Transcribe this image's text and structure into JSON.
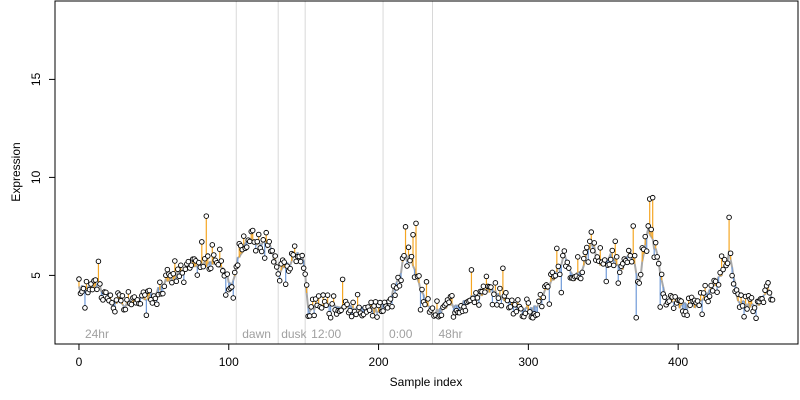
{
  "chart_data": {
    "type": "line",
    "title": "",
    "xlabel": "Sample index",
    "ylabel": "Expression",
    "xlim": [
      -16,
      480
    ],
    "ylim": [
      1.5,
      19
    ],
    "x_ticks": [
      0,
      100,
      200,
      300,
      400
    ],
    "y_ticks": [
      5,
      10,
      15
    ],
    "grid": false,
    "legend": "none",
    "colors": {
      "fitted_line": "#a8a8a8",
      "residual_above": "#f5a623",
      "residual_below": "#6f9ad8",
      "divider": "#d8d8d8",
      "region_label": "#a0a0a0",
      "point_fill": "#ffffff",
      "point_stroke": "#000000"
    },
    "dividers": [
      105,
      133,
      151,
      203,
      236
    ],
    "region_labels": [
      {
        "text": "24hr",
        "x": 2
      },
      {
        "text": "dawn",
        "x": 107
      },
      {
        "text": "dusk",
        "x": 133
      },
      {
        "text": "12:00",
        "x": 153
      },
      {
        "text": "0:00",
        "x": 205
      },
      {
        "text": "48hr",
        "x": 238
      }
    ],
    "anchors": {
      "fitted": [
        [
          0,
          4.3
        ],
        [
          12,
          4.6
        ],
        [
          20,
          3.8
        ],
        [
          30,
          3.5
        ],
        [
          40,
          3.7
        ],
        [
          50,
          4.1
        ],
        [
          60,
          4.8
        ],
        [
          70,
          5.3
        ],
        [
          80,
          5.5
        ],
        [
          90,
          5.7
        ],
        [
          95,
          5.5
        ],
        [
          102,
          4.5
        ],
        [
          106,
          5.8
        ],
        [
          112,
          6.8
        ],
        [
          120,
          6.7
        ],
        [
          128,
          6.5
        ],
        [
          133,
          5.2
        ],
        [
          140,
          5.6
        ],
        [
          146,
          6.2
        ],
        [
          150,
          5.8
        ],
        [
          153,
          3.3
        ],
        [
          160,
          3.4
        ],
        [
          170,
          3.6
        ],
        [
          180,
          3.4
        ],
        [
          190,
          3.3
        ],
        [
          200,
          3.2
        ],
        [
          205,
          3.6
        ],
        [
          212,
          4.5
        ],
        [
          217,
          5.8
        ],
        [
          222,
          5.9
        ],
        [
          226,
          4.8
        ],
        [
          232,
          3.4
        ],
        [
          238,
          3.1
        ],
        [
          245,
          3.4
        ],
        [
          255,
          3.6
        ],
        [
          265,
          4.0
        ],
        [
          275,
          4.2
        ],
        [
          285,
          3.8
        ],
        [
          295,
          3.4
        ],
        [
          305,
          3.3
        ],
        [
          312,
          4.3
        ],
        [
          318,
          5.0
        ],
        [
          324,
          6.0
        ],
        [
          330,
          4.8
        ],
        [
          336,
          5.3
        ],
        [
          342,
          6.7
        ],
        [
          348,
          5.6
        ],
        [
          356,
          6.0
        ],
        [
          362,
          5.3
        ],
        [
          368,
          6.3
        ],
        [
          374,
          4.6
        ],
        [
          380,
          7.5
        ],
        [
          386,
          6.0
        ],
        [
          392,
          3.6
        ],
        [
          400,
          3.5
        ],
        [
          410,
          3.4
        ],
        [
          420,
          4.0
        ],
        [
          428,
          4.9
        ],
        [
          434,
          6.1
        ],
        [
          440,
          3.8
        ],
        [
          448,
          3.4
        ],
        [
          455,
          3.6
        ],
        [
          460,
          4.4
        ],
        [
          463,
          3.7
        ]
      ],
      "spikes": [
        [
          13,
          1.2
        ],
        [
          33,
          0.7
        ],
        [
          59,
          0.6
        ],
        [
          64,
          0.9
        ],
        [
          82,
          1.1
        ],
        [
          85,
          2.6
        ],
        [
          89,
          1.0
        ],
        [
          94,
          0.9
        ],
        [
          107,
          0.7
        ],
        [
          116,
          0.6
        ],
        [
          125,
          0.7
        ],
        [
          144,
          0.5
        ],
        [
          163,
          0.6
        ],
        [
          176,
          1.4
        ],
        [
          186,
          0.6
        ],
        [
          218,
          1.5
        ],
        [
          223,
          1.6
        ],
        [
          225,
          2.6
        ],
        [
          232,
          1.2
        ],
        [
          262,
          1.3
        ],
        [
          272,
          0.8
        ],
        [
          283,
          1.4
        ],
        [
          319,
          1.2
        ],
        [
          333,
          0.8
        ],
        [
          348,
          0.9
        ],
        [
          358,
          1.0
        ],
        [
          370,
          1.8
        ],
        [
          376,
          0.7
        ],
        [
          381,
          1.8
        ],
        [
          383,
          2.1
        ],
        [
          429,
          1.0
        ],
        [
          434,
          1.7
        ]
      ],
      "dips": [
        [
          4,
          -1.1
        ],
        [
          24,
          -0.6
        ],
        [
          45,
          -0.8
        ],
        [
          52,
          -0.6
        ],
        [
          70,
          -0.5
        ],
        [
          98,
          -1.0
        ],
        [
          103,
          -0.9
        ],
        [
          124,
          -0.8
        ],
        [
          138,
          -0.9
        ],
        [
          157,
          -0.8
        ],
        [
          168,
          -0.9
        ],
        [
          182,
          -0.5
        ],
        [
          196,
          -0.7
        ],
        [
          209,
          -0.6
        ],
        [
          214,
          -0.5
        ],
        [
          228,
          -1.0
        ],
        [
          241,
          -0.6
        ],
        [
          250,
          -0.7
        ],
        [
          276,
          -0.8
        ],
        [
          290,
          -0.6
        ],
        [
          302,
          -0.5
        ],
        [
          314,
          -0.9
        ],
        [
          322,
          -1.4
        ],
        [
          340,
          -0.7
        ],
        [
          352,
          -1.0
        ],
        [
          360,
          -0.9
        ],
        [
          372,
          -2.5
        ],
        [
          379,
          -0.8
        ],
        [
          388,
          -1.7
        ],
        [
          404,
          -0.6
        ],
        [
          416,
          -0.7
        ],
        [
          426,
          -0.6
        ],
        [
          444,
          -0.8
        ],
        [
          452,
          -0.6
        ]
      ]
    },
    "n_points": 464
  }
}
